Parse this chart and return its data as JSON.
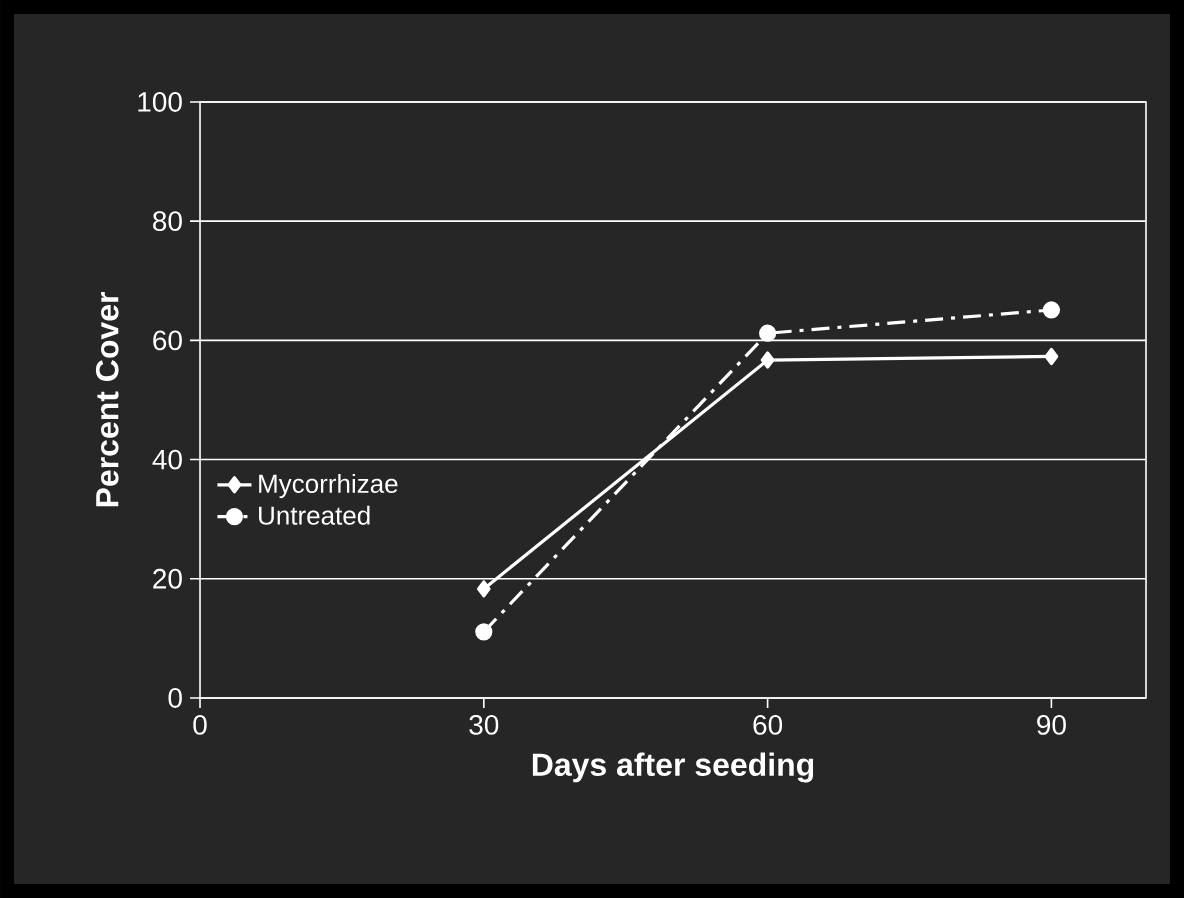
{
  "chart_data": {
    "type": "line",
    "xlabel": "Days after seeding",
    "ylabel": "Percent Cover",
    "x": [
      30,
      60,
      90
    ],
    "series": [
      {
        "name": "Mycorrhizae",
        "color": "#ffffff",
        "values": [
          18.3,
          56.7,
          57.3
        ],
        "marker": "diamond",
        "line_style": "solid"
      },
      {
        "name": "Untreated",
        "color": "#ffffff",
        "values": [
          11.1,
          61.2,
          65.1
        ],
        "marker": "circle",
        "line_style": "dashed"
      }
    ],
    "xlim": [
      0,
      100
    ],
    "xticks": [
      0,
      30,
      60,
      90
    ],
    "ylim": [
      0,
      100
    ],
    "yticks": [
      0,
      20,
      40,
      60,
      80,
      100
    ],
    "grid": "y",
    "legend": "left"
  }
}
